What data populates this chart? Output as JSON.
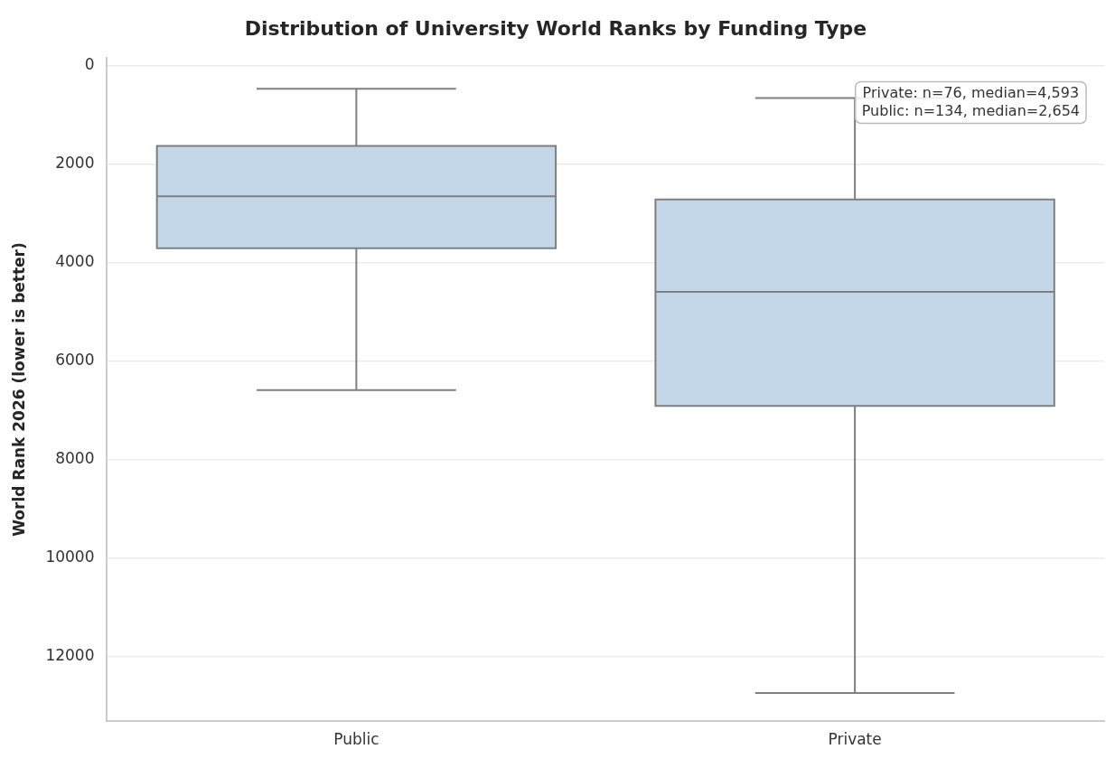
{
  "chart_data": {
    "type": "box",
    "title": "Distribution of University World Ranks by Funding Type",
    "ylabel": "World Rank 2026 (lower is better)",
    "categories": [
      "Public",
      "Private"
    ],
    "boxes": [
      {
        "low": 470,
        "q1": 1630,
        "median": 2654,
        "q3": 3710,
        "high": 6590
      },
      {
        "low": 660,
        "q1": 2720,
        "median": 4593,
        "q3": 6910,
        "high": 12740
      }
    ],
    "colors": [
      "#c3d7e8",
      "#c3d7e8"
    ],
    "ylim": [
      13300,
      -150
    ],
    "yticks": [
      0,
      2000,
      4000,
      6000,
      8000,
      10000,
      12000
    ],
    "grid": "y",
    "legend": false,
    "annotations": [
      "Private: n=76, median=4,593",
      "Public: n=134, median=2,654"
    ]
  }
}
